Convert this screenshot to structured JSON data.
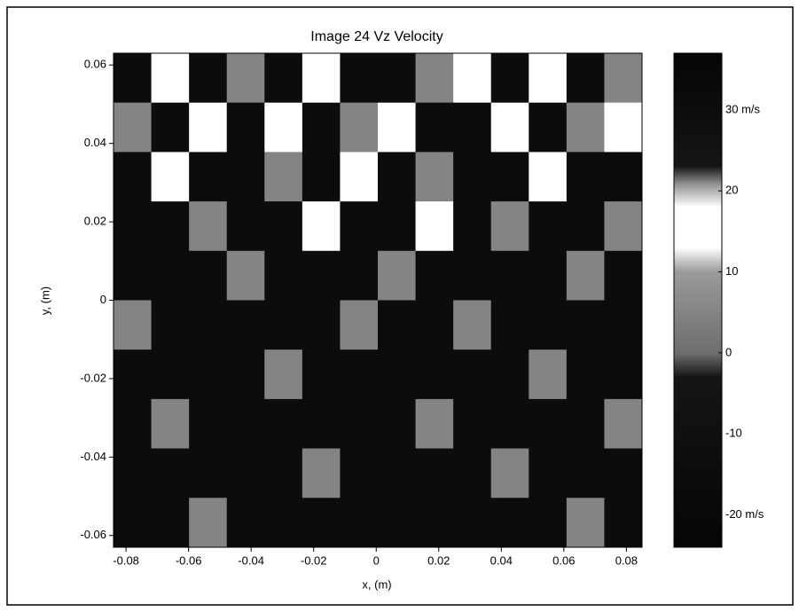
{
  "chart_data": {
    "type": "heatmap",
    "title": "Image 24 Vz Velocity",
    "x_label": "x, (m)",
    "y_label": "y, (m)",
    "xlim": [
      -0.084,
      0.085
    ],
    "xticks": [
      -0.08,
      -0.06,
      -0.04,
      -0.02,
      0,
      0.02,
      0.04,
      0.06,
      0.08
    ],
    "ylim": [
      -0.063,
      0.063
    ],
    "yticks": [
      -0.06,
      -0.04,
      -0.02,
      0,
      0.02,
      0.04,
      0.06
    ],
    "clim": [
      -24,
      37
    ],
    "cticks": [
      {
        "value": -20,
        "label": "-20 m/s"
      },
      -10,
      0,
      10,
      20,
      {
        "value": 30,
        "label": "30 m/s"
      }
    ],
    "colormap": [
      [
        -24,
        "#050505"
      ],
      [
        -3,
        "#151515"
      ],
      [
        0,
        "#6e6e6e"
      ],
      [
        10,
        "#9a9a9a"
      ],
      [
        13,
        "#ffffff"
      ],
      [
        18,
        "#ffffff"
      ],
      [
        21,
        "#8a8a8a"
      ],
      [
        23,
        "#151515"
      ],
      [
        37,
        "#050505"
      ]
    ],
    "z": [
      [
        -15,
        15,
        -15,
        5,
        -15,
        15,
        -15,
        -15,
        5,
        15,
        -15,
        15,
        -15,
        5
      ],
      [
        5,
        -15,
        15,
        -15,
        15,
        -15,
        5,
        15,
        -15,
        -15,
        15,
        -15,
        5,
        15
      ],
      [
        -15,
        15,
        -15,
        -15,
        5,
        -15,
        15,
        -15,
        5,
        -15,
        -15,
        15,
        -15,
        -15
      ],
      [
        -15,
        -15,
        5,
        -15,
        -15,
        15,
        -15,
        -15,
        15,
        -15,
        5,
        -15,
        -15,
        5
      ],
      [
        -15,
        -15,
        -15,
        5,
        -15,
        -15,
        -15,
        5,
        -15,
        -15,
        -15,
        -15,
        5,
        -15
      ],
      [
        5,
        -15,
        -15,
        -15,
        -15,
        -15,
        5,
        -15,
        -15,
        5,
        -15,
        -15,
        -15,
        -15
      ],
      [
        -15,
        -15,
        -15,
        -15,
        5,
        -15,
        -15,
        -15,
        -15,
        -15,
        -15,
        5,
        -15,
        -15
      ],
      [
        -15,
        5,
        -15,
        -15,
        -15,
        -15,
        -15,
        -15,
        5,
        -15,
        -15,
        -15,
        -15,
        5
      ],
      [
        -15,
        -15,
        -15,
        -15,
        -15,
        5,
        -15,
        -15,
        -15,
        -15,
        5,
        -15,
        -15,
        -15
      ],
      [
        -15,
        -15,
        5,
        -15,
        -15,
        -15,
        -15,
        -15,
        -15,
        -15,
        -15,
        -15,
        5,
        -15
      ]
    ]
  }
}
